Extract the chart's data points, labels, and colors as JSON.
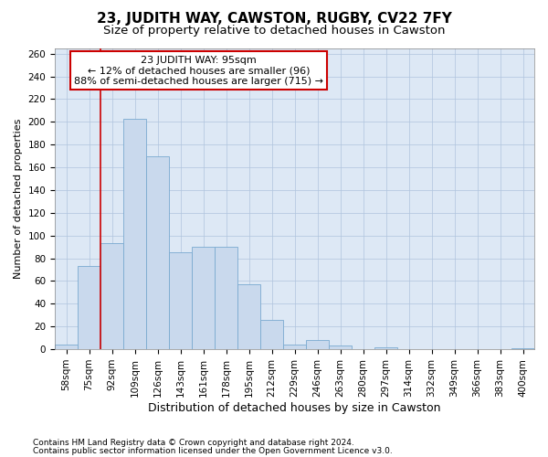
{
  "title1": "23, JUDITH WAY, CAWSTON, RUGBY, CV22 7FY",
  "title2": "Size of property relative to detached houses in Cawston",
  "xlabel": "Distribution of detached houses by size in Cawston",
  "ylabel": "Number of detached properties",
  "footer1": "Contains HM Land Registry data © Crown copyright and database right 2024.",
  "footer2": "Contains public sector information licensed under the Open Government Licence v3.0.",
  "annotation_line1": "23 JUDITH WAY: 95sqm",
  "annotation_line2": "← 12% of detached houses are smaller (96)",
  "annotation_line3": "88% of semi-detached houses are larger (715) →",
  "bar_labels": [
    "58sqm",
    "75sqm",
    "92sqm",
    "109sqm",
    "126sqm",
    "143sqm",
    "161sqm",
    "178sqm",
    "195sqm",
    "212sqm",
    "229sqm",
    "246sqm",
    "263sqm",
    "280sqm",
    "297sqm",
    "314sqm",
    "332sqm",
    "349sqm",
    "366sqm",
    "383sqm",
    "400sqm"
  ],
  "bar_values": [
    4,
    73,
    93,
    203,
    170,
    85,
    90,
    90,
    57,
    26,
    4,
    8,
    3,
    0,
    2,
    0,
    0,
    0,
    0,
    0,
    1
  ],
  "bar_color": "#c9d9ed",
  "bar_edge_color": "#7aaad0",
  "red_line_index": 2,
  "ylim": [
    0,
    265
  ],
  "yticks": [
    0,
    20,
    40,
    60,
    80,
    100,
    120,
    140,
    160,
    180,
    200,
    220,
    240,
    260
  ],
  "background_color": "#ffffff",
  "plot_bg_color": "#dde8f5",
  "grid_color": "#b0c4de",
  "annotation_box_color": "#ffffff",
  "annotation_box_edge": "#cc0000",
  "red_line_color": "#cc0000",
  "title1_fontsize": 11,
  "title2_fontsize": 9.5,
  "xlabel_fontsize": 9,
  "ylabel_fontsize": 8,
  "tick_fontsize": 7.5,
  "annotation_fontsize": 8,
  "footer_fontsize": 6.5
}
